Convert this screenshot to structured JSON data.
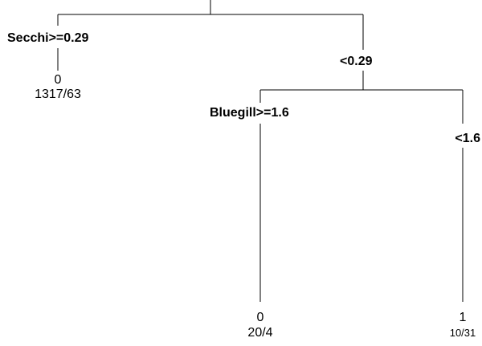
{
  "tree": {
    "root_split": {
      "left_condition": "Secchi>=0.29",
      "right_condition": "<0.29"
    },
    "leaf_left": {
      "class": "0",
      "counts": "1317/63"
    },
    "inner_split": {
      "left_condition": "Bluegill>=1.6",
      "right_condition": "<1.6"
    },
    "leaf_middle": {
      "class": "0",
      "counts": "20/4"
    },
    "leaf_right": {
      "class": "1",
      "counts": "10/31"
    }
  }
}
